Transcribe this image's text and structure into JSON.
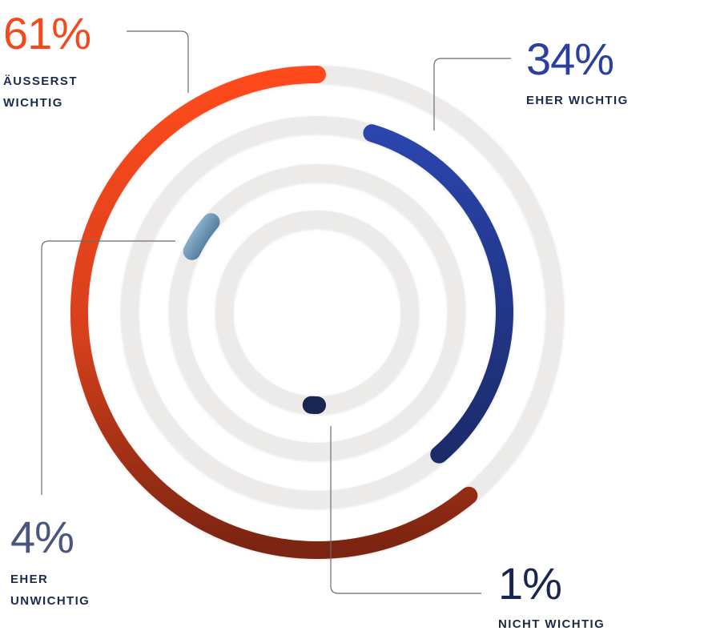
{
  "chart_data": {
    "type": "radial-bar",
    "value_range": [
      0,
      100
    ],
    "unit": "%",
    "series": [
      {
        "label_line1": "ÄUSSERST",
        "label_line2": "WICHTIG",
        "value": 61,
        "display": "61%",
        "color": "#f34a1d",
        "color_end": "#7e2410",
        "ring": 1
      },
      {
        "label_line1": "EHER WICHTIG",
        "label_line2": "",
        "value": 34,
        "display": "34%",
        "color": "#2a43a4",
        "color_end": "#1a2c6b",
        "ring": 2
      },
      {
        "label_line1": "EHER",
        "label_line2": "UNWICHTIG",
        "value": 4,
        "display": "4%",
        "color": "#4a5a86",
        "color_end": "#8bb0cc",
        "ring": 3
      },
      {
        "label_line1": "NICHT WICHTIG",
        "label_line2": "",
        "value": 1,
        "display": "1%",
        "color": "#1a2550",
        "color_end": "#1a2550",
        "ring": 4
      }
    ],
    "track_color": "#ecebea"
  }
}
